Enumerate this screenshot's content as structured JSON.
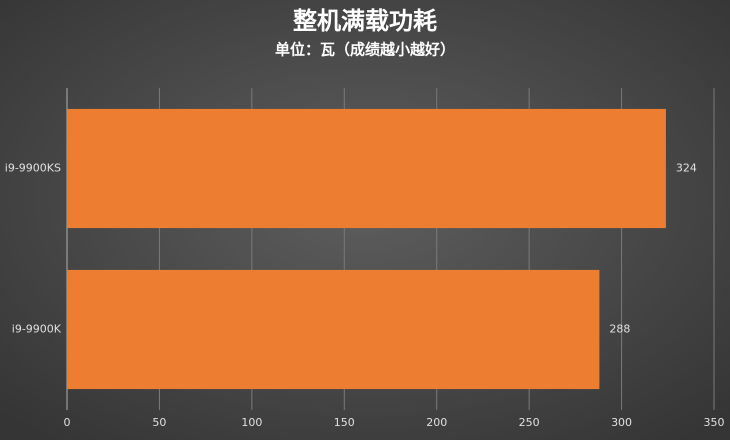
{
  "chart_data": {
    "type": "bar",
    "orientation": "horizontal",
    "title": "整机满载功耗",
    "subtitle": "单位：瓦（成绩越小越好）",
    "categories": [
      "i9-9900KS",
      "i9-9900K"
    ],
    "values": [
      324,
      288
    ],
    "color": "#ed7d31",
    "xlim": [
      0,
      350
    ],
    "xticks": [
      0,
      50,
      100,
      150,
      200,
      250,
      300,
      350
    ],
    "grid": true
  }
}
